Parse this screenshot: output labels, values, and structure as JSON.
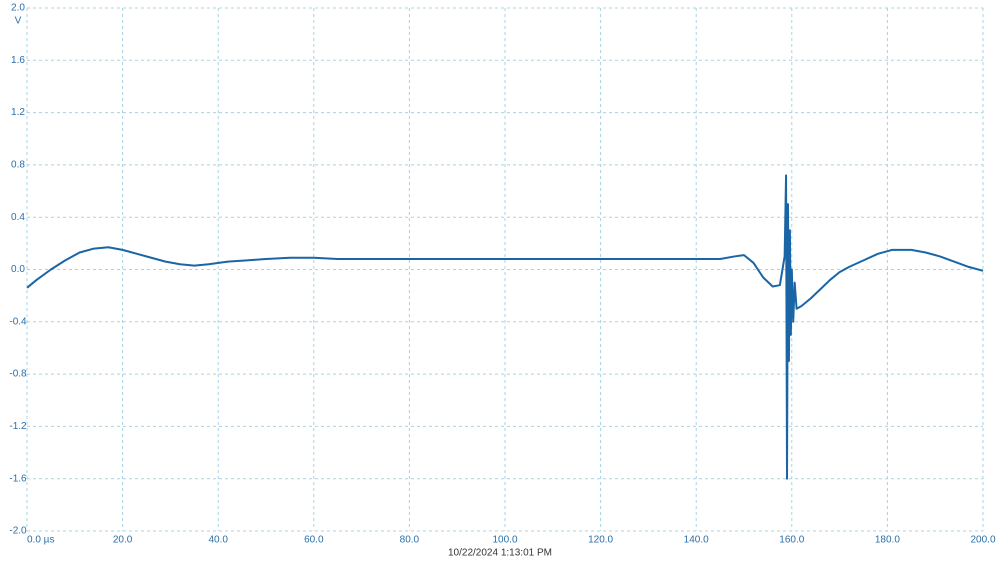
{
  "chart_data": {
    "type": "line",
    "y_unit": "V",
    "timestamp": "10/22/2024 1:13:01 PM",
    "color": "#1a65a6",
    "grid": true,
    "xlim": [
      0,
      200
    ],
    "ylim": [
      -2,
      2
    ],
    "xticks": [
      {
        "value": 0,
        "label": "0.0 µs"
      },
      {
        "value": 20,
        "label": "20.0"
      },
      {
        "value": 40,
        "label": "40.0"
      },
      {
        "value": 60,
        "label": "60.0"
      },
      {
        "value": 80,
        "label": "80.0"
      },
      {
        "value": 100,
        "label": "100.0"
      },
      {
        "value": 120,
        "label": "120.0"
      },
      {
        "value": 140,
        "label": "140.0"
      },
      {
        "value": 160,
        "label": "160.0"
      },
      {
        "value": 180,
        "label": "180.0"
      },
      {
        "value": 200,
        "label": "200.0"
      }
    ],
    "yticks": [
      {
        "value": 2,
        "label": "2.0"
      },
      {
        "value": 1.6,
        "label": "1.6"
      },
      {
        "value": 1.2,
        "label": "1.2"
      },
      {
        "value": 0.8,
        "label": "0.8"
      },
      {
        "value": 0.4,
        "label": "0.4"
      },
      {
        "value": 0,
        "label": "0.0"
      },
      {
        "value": -0.4,
        "label": "-0.4"
      },
      {
        "value": -0.8,
        "label": "-0.8"
      },
      {
        "value": -1.2,
        "label": "-1.2"
      },
      {
        "value": -1.6,
        "label": "-1.6"
      },
      {
        "value": -2,
        "label": "-2.0"
      }
    ],
    "x": [
      0,
      2,
      5,
      8,
      11,
      14,
      17,
      20,
      23,
      26,
      29,
      32,
      35,
      38,
      42,
      46,
      50,
      55,
      60,
      65,
      70,
      80,
      90,
      100,
      110,
      120,
      130,
      140,
      145,
      148,
      150,
      152,
      154,
      156,
      157.5,
      158.5,
      158.8,
      159,
      159.2,
      159.4,
      159.6,
      159.8,
      160,
      160.3,
      160.6,
      161,
      162,
      164,
      166,
      168,
      170,
      172,
      175,
      178,
      181,
      185,
      188,
      191,
      194,
      197,
      200
    ],
    "values": [
      -0.14,
      -0.08,
      0.0,
      0.07,
      0.13,
      0.16,
      0.17,
      0.15,
      0.12,
      0.09,
      0.06,
      0.04,
      0.03,
      0.04,
      0.06,
      0.07,
      0.08,
      0.09,
      0.09,
      0.08,
      0.08,
      0.08,
      0.08,
      0.08,
      0.08,
      0.08,
      0.08,
      0.08,
      0.08,
      0.1,
      0.11,
      0.05,
      -0.06,
      -0.13,
      -0.12,
      0.1,
      0.72,
      -1.6,
      0.5,
      -0.7,
      0.3,
      -0.5,
      0.0,
      -0.4,
      -0.1,
      -0.3,
      -0.28,
      -0.22,
      -0.15,
      -0.08,
      -0.02,
      0.02,
      0.07,
      0.12,
      0.15,
      0.15,
      0.13,
      0.1,
      0.06,
      0.02,
      -0.01
    ]
  }
}
